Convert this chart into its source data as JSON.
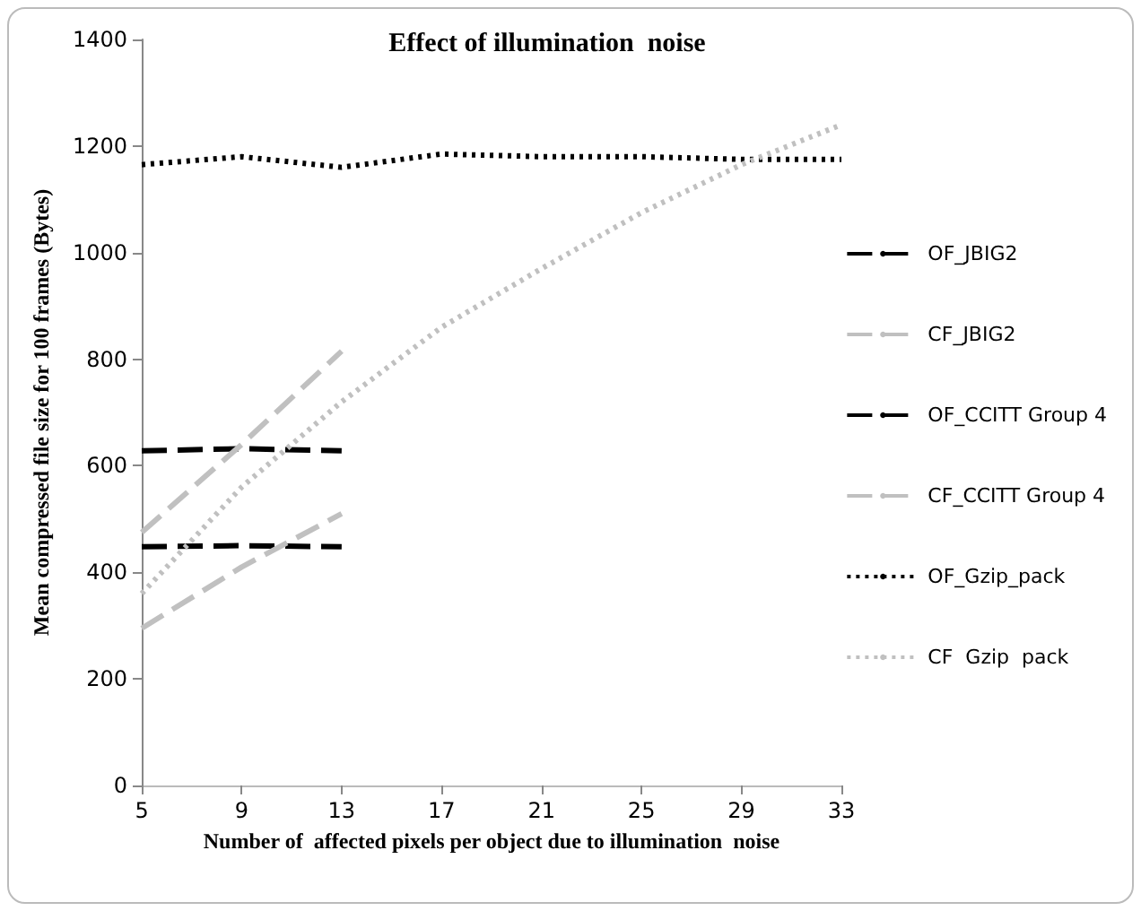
{
  "chart_data": {
    "type": "line",
    "title": "Effect of illumination  noise",
    "xlabel": "Number of  affected pixels per object due to illumination  noise",
    "ylabel": "Mean compressed file size for 100 frames (Bytes)",
    "xlim": [
      5,
      33
    ],
    "xticks": [
      5,
      9,
      13,
      17,
      21,
      25,
      29,
      33
    ],
    "ylim": [
      0,
      1400
    ],
    "yticks": [
      0,
      200,
      400,
      600,
      800,
      1000,
      1200,
      1400
    ],
    "grid": false,
    "legend": "right",
    "marker": "none",
    "series": [
      {
        "name": "OF_JBIG2",
        "color": "#000000",
        "line_style": "dashed",
        "x": [
          5,
          9,
          13
        ],
        "values": [
          448,
          450,
          448
        ]
      },
      {
        "name": "CF_JBIG2",
        "color": "#c0c0c0",
        "line_style": "dashed",
        "x": [
          5,
          9,
          13
        ],
        "values": [
          295,
          410,
          510
        ]
      },
      {
        "name": "OF_CCITT Group 4",
        "color": "#000000",
        "line_style": "dashed",
        "x": [
          5,
          9,
          13
        ],
        "values": [
          628,
          632,
          628
        ]
      },
      {
        "name": "CF_CCITT Group 4",
        "color": "#c0c0c0",
        "line_style": "dashed",
        "x": [
          5,
          9,
          13
        ],
        "values": [
          475,
          640,
          815
        ]
      },
      {
        "name": "OF_Gzip_pack",
        "color": "#000000",
        "line_style": "dotted",
        "x": [
          5,
          9,
          13,
          17,
          21,
          25,
          29,
          33
        ],
        "values": [
          1165,
          1180,
          1160,
          1185,
          1180,
          1180,
          1175,
          1175
        ]
      },
      {
        "name": "CF  Gzip  pack",
        "color": "#c0c0c0",
        "line_style": "dotted",
        "x": [
          5,
          9,
          13,
          17,
          21,
          25,
          29,
          33
        ],
        "values": [
          360,
          560,
          720,
          860,
          970,
          1075,
          1165,
          1240
        ]
      }
    ]
  }
}
